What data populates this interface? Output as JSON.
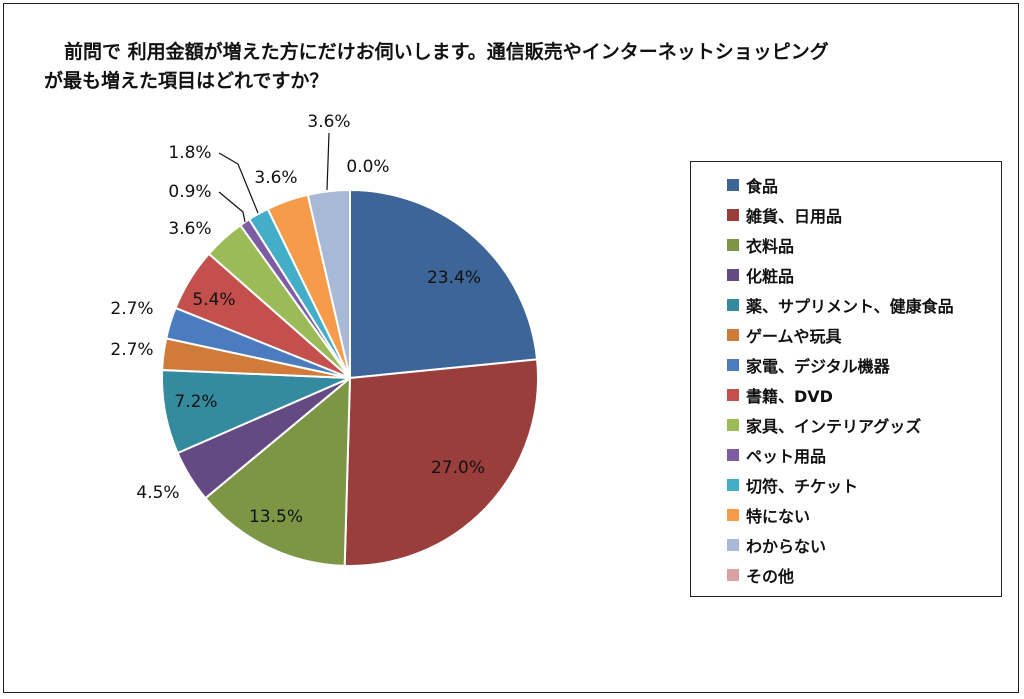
{
  "title": "前問で 利用金額が増えた方にだけお伺いします。通信販売やインターネットショッピングが最も増えた項目はどれですか？",
  "chart_data": {
    "type": "pie",
    "title": "前問で 利用金額が増えた方にだけお伺いします。通信販売やインターネットショッピングが最も増えた項目はどれですか？",
    "legend_position": "right",
    "slices": [
      {
        "label": "食品",
        "value": 23.4,
        "display": "23.4%",
        "color": "#3e6597"
      },
      {
        "label": "雑貨、日用品",
        "value": 27.0,
        "display": "27.0%",
        "color": "#9a3e3b"
      },
      {
        "label": "衣料品",
        "value": 13.5,
        "display": "13.5%",
        "color": "#7c9645"
      },
      {
        "label": "化粧品",
        "value": 4.5,
        "display": "4.5%",
        "color": "#644a82"
      },
      {
        "label": "薬、サプリメント、健康食品",
        "value": 7.2,
        "display": "7.2%",
        "color": "#348a9e"
      },
      {
        "label": "ゲームや玩具",
        "value": 2.7,
        "display": "2.7%",
        "color": "#d07b3a"
      },
      {
        "label": "家電、デジタル機器",
        "value": 2.7,
        "display": "2.7%",
        "color": "#4a7cbf"
      },
      {
        "label": "書籍、DVD",
        "value": 5.4,
        "display": "5.4%",
        "color": "#c3504d"
      },
      {
        "label": "家具、インテリアグッズ",
        "value": 3.6,
        "display": "3.6%",
        "color": "#9bbb59"
      },
      {
        "label": "ペット用品",
        "value": 0.9,
        "display": "0.9%",
        "color": "#7d5ca3"
      },
      {
        "label": "切符、チケット",
        "value": 1.8,
        "display": "1.8%",
        "color": "#44adc7"
      },
      {
        "label": "特にない",
        "value": 3.6,
        "display": "3.6%",
        "color": "#f59b4a"
      },
      {
        "label": "わからない",
        "value": 3.6,
        "display": "3.6%",
        "color": "#a8b9d8"
      },
      {
        "label": "その他",
        "value": 0.0,
        "display": "0.0%",
        "color": "#d9a3a4"
      }
    ]
  }
}
